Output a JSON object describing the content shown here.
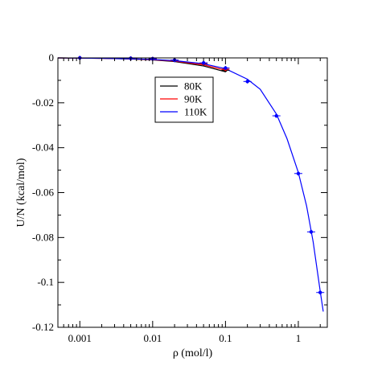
{
  "chart_data": {
    "type": "line",
    "title": "",
    "xlabel": "ρ (mol/l)",
    "ylabel": "U/N (kcal/mol)",
    "xscale": "log",
    "xlim": [
      0.0005,
      2.5
    ],
    "ylim": [
      -0.12,
      0
    ],
    "x_ticks": [
      {
        "value": 0.001,
        "label": "0.001"
      },
      {
        "value": 0.01,
        "label": "0.01"
      },
      {
        "value": 0.1,
        "label": "0.1"
      },
      {
        "value": 1,
        "label": "1"
      }
    ],
    "y_ticks": [
      {
        "value": 0,
        "label": "0"
      },
      {
        "value": -0.02,
        "label": "-0.02"
      },
      {
        "value": -0.04,
        "label": "-0.04"
      },
      {
        "value": -0.06,
        "label": "-0.06"
      },
      {
        "value": -0.08,
        "label": "-0.08"
      },
      {
        "value": -0.1,
        "label": "-0.1"
      },
      {
        "value": -0.12,
        "label": "-0.12"
      }
    ],
    "grid": false,
    "legend_position": "top-center",
    "series": [
      {
        "name": "80K",
        "color": "#000000",
        "line_x": [
          0.0005,
          0.001,
          0.002,
          0.005,
          0.01,
          0.02,
          0.05,
          0.1
        ],
        "line_y": [
          0,
          -0.0001,
          -0.0002,
          -0.0005,
          -0.0009,
          -0.0016,
          -0.0036,
          -0.0062
        ],
        "points": {
          "x": [
            0.001,
            0.005,
            0.01,
            0.02,
            0.05,
            0.1
          ],
          "y": [
            0,
            -0.0002,
            -0.0004,
            -0.001,
            -0.0025,
            -0.0055
          ]
        }
      },
      {
        "name": "90K",
        "color": "#ff0000",
        "line_x": [
          0.0005,
          0.001,
          0.002,
          0.005,
          0.01,
          0.02,
          0.05,
          0.1
        ],
        "line_y": [
          0,
          -0.0001,
          -0.0002,
          -0.0004,
          -0.0008,
          -0.0014,
          -0.0031,
          -0.0055
        ],
        "points": {
          "x": [
            0.001,
            0.005,
            0.01,
            0.02,
            0.05,
            0.1
          ],
          "y": [
            0,
            -0.0002,
            -0.0004,
            -0.001,
            -0.0024,
            -0.005
          ]
        }
      },
      {
        "name": "110K",
        "color": "#0000ff",
        "line_x": [
          0.0005,
          0.001,
          0.002,
          0.005,
          0.01,
          0.02,
          0.05,
          0.1,
          0.2,
          0.3,
          0.5,
          0.7,
          1,
          1.3,
          1.6,
          2,
          2.2
        ],
        "line_y": [
          0,
          -0.0001,
          -0.0002,
          -0.0004,
          -0.0007,
          -0.0012,
          -0.0026,
          -0.0048,
          -0.0095,
          -0.014,
          -0.025,
          -0.036,
          -0.051,
          -0.066,
          -0.082,
          -0.104,
          -0.113
        ],
        "points": {
          "x": [
            0.001,
            0.005,
            0.01,
            0.02,
            0.05,
            0.1,
            0.2,
            0.5,
            1,
            1.5,
            2
          ],
          "y": [
            0,
            -0.0002,
            -0.0004,
            -0.001,
            -0.0022,
            -0.0045,
            -0.0105,
            -0.0258,
            -0.0515,
            -0.0775,
            -0.1045
          ]
        }
      }
    ]
  }
}
